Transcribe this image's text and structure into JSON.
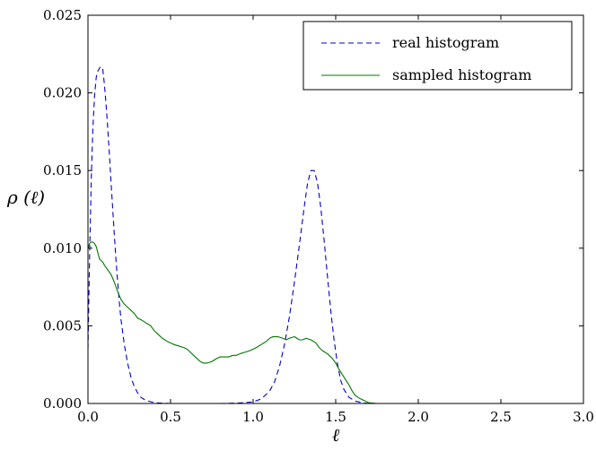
{
  "chart_data": {
    "type": "line",
    "title": "",
    "xlabel": "ℓ",
    "ylabel": "ρ (ℓ)",
    "xlim": [
      0.0,
      3.0
    ],
    "ylim": [
      0.0,
      0.025
    ],
    "x_ticks": [
      "0.0",
      "0.5",
      "1.0",
      "1.5",
      "2.0",
      "2.5",
      "3.0"
    ],
    "y_ticks": [
      "0.000",
      "0.005",
      "0.010",
      "0.015",
      "0.020",
      "0.025"
    ],
    "grid": false,
    "legend": {
      "position": "top-right",
      "entries": [
        "real histogram",
        "sampled histogram"
      ]
    },
    "series": [
      {
        "name": "real histogram",
        "color": "#0000cc",
        "style": "dashed",
        "x": [
          0.0,
          0.01,
          0.02,
          0.03,
          0.04,
          0.05,
          0.06,
          0.07,
          0.08,
          0.09,
          0.1,
          0.11,
          0.12,
          0.13,
          0.14,
          0.15,
          0.16,
          0.17,
          0.18,
          0.19,
          0.2,
          0.22,
          0.24,
          0.26,
          0.28,
          0.3,
          0.32,
          0.35,
          0.4,
          0.45,
          0.5,
          0.6,
          0.7,
          0.8,
          0.9,
          1.0,
          1.05,
          1.1,
          1.13,
          1.16,
          1.19,
          1.22,
          1.25,
          1.28,
          1.31,
          1.33,
          1.35,
          1.37,
          1.39,
          1.41,
          1.43,
          1.45,
          1.47,
          1.49,
          1.51,
          1.53,
          1.55,
          1.58,
          1.62,
          1.66,
          1.7,
          1.8,
          2.0,
          2.5,
          3.0
        ],
        "values": [
          0.0035,
          0.0095,
          0.0145,
          0.0178,
          0.0198,
          0.021,
          0.0214,
          0.0216,
          0.0217,
          0.0215,
          0.0205,
          0.0192,
          0.0177,
          0.016,
          0.0142,
          0.0125,
          0.0108,
          0.0092,
          0.0078,
          0.0065,
          0.0054,
          0.0038,
          0.0026,
          0.0017,
          0.0011,
          0.0007,
          0.0004,
          0.0002,
          5e-05,
          2e-05,
          0.0,
          0.0,
          0.0,
          0.0,
          2e-05,
          0.0001,
          0.0003,
          0.0008,
          0.0014,
          0.0024,
          0.0038,
          0.0056,
          0.0078,
          0.0102,
          0.0127,
          0.0142,
          0.015,
          0.015,
          0.0142,
          0.0126,
          0.0105,
          0.0082,
          0.006,
          0.0041,
          0.0026,
          0.0015,
          0.0009,
          0.0004,
          0.00015,
          5e-05,
          0.0,
          0.0,
          0.0,
          0.0,
          0.0
        ]
      },
      {
        "name": "sampled histogram",
        "color": "#007700",
        "style": "solid",
        "x": [
          0.0,
          0.01,
          0.02,
          0.03,
          0.04,
          0.05,
          0.06,
          0.07,
          0.08,
          0.09,
          0.1,
          0.12,
          0.14,
          0.16,
          0.18,
          0.2,
          0.22,
          0.25,
          0.28,
          0.3,
          0.32,
          0.35,
          0.38,
          0.4,
          0.42,
          0.45,
          0.48,
          0.5,
          0.52,
          0.55,
          0.58,
          0.6,
          0.62,
          0.65,
          0.68,
          0.7,
          0.72,
          0.75,
          0.78,
          0.8,
          0.82,
          0.85,
          0.88,
          0.9,
          0.92,
          0.95,
          0.98,
          1.0,
          1.02,
          1.05,
          1.08,
          1.1,
          1.12,
          1.15,
          1.18,
          1.2,
          1.22,
          1.25,
          1.28,
          1.3,
          1.32,
          1.35,
          1.38,
          1.4,
          1.42,
          1.45,
          1.48,
          1.5,
          1.52,
          1.55,
          1.58,
          1.6,
          1.62,
          1.65,
          1.68,
          1.7,
          1.75,
          1.8,
          2.0,
          2.5,
          3.0
        ],
        "values": [
          0.01,
          0.0103,
          0.0104,
          0.0104,
          0.0103,
          0.0101,
          0.0097,
          0.0093,
          0.0092,
          0.0091,
          0.0089,
          0.0086,
          0.0083,
          0.0078,
          0.0072,
          0.0067,
          0.0064,
          0.0061,
          0.0058,
          0.0055,
          0.0054,
          0.0052,
          0.005,
          0.0047,
          0.0045,
          0.0042,
          0.004,
          0.0039,
          0.0038,
          0.0037,
          0.0036,
          0.0035,
          0.0033,
          0.003,
          0.0027,
          0.0026,
          0.0026,
          0.0027,
          0.0029,
          0.003,
          0.003,
          0.003,
          0.0031,
          0.0031,
          0.0032,
          0.0033,
          0.0034,
          0.0035,
          0.0036,
          0.0038,
          0.004,
          0.0042,
          0.0043,
          0.0043,
          0.0042,
          0.0041,
          0.0042,
          0.0043,
          0.0041,
          0.0041,
          0.0042,
          0.0041,
          0.0039,
          0.0036,
          0.0034,
          0.0032,
          0.0029,
          0.0026,
          0.0022,
          0.0017,
          0.0012,
          0.0008,
          0.0005,
          0.0003,
          0.00015,
          5e-05,
          0.0,
          0.0,
          0.0,
          0.0,
          0.0
        ]
      }
    ]
  }
}
